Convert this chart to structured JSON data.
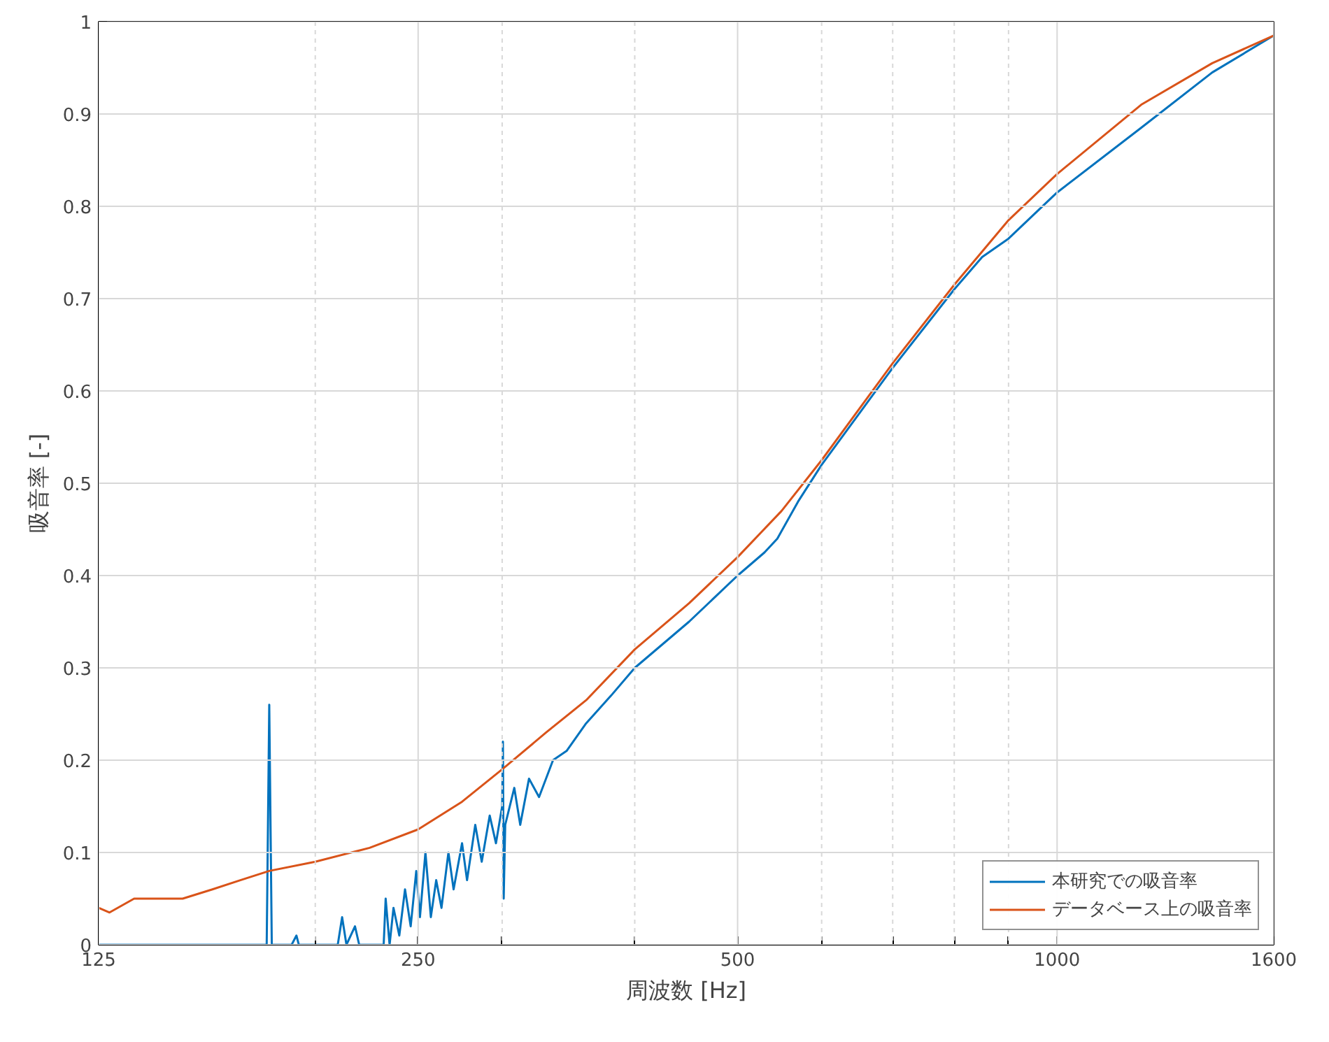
{
  "chart_data": {
    "type": "line",
    "xlabel": "周波数 [Hz]",
    "ylabel": "吸音率 [-]",
    "log": "x",
    "grid": true,
    "legend": "bottom right",
    "xlim": [
      125,
      1600
    ],
    "ylim": [
      0,
      1
    ],
    "xticks": [
      125,
      {
        "value": 200,
        "label": null
      },
      250,
      {
        "value": 300,
        "label": null
      },
      {
        "value": 400,
        "label": null
      },
      500,
      {
        "value": 600,
        "label": null
      },
      {
        "value": 700,
        "label": null
      },
      {
        "value": 800,
        "label": null
      },
      {
        "value": 900,
        "label": null
      },
      1000,
      1600
    ],
    "yticks": [
      0,
      0.1,
      0.2,
      0.3,
      0.4,
      0.5,
      0.6,
      0.7,
      0.8,
      0.9,
      1
    ],
    "series": [
      {
        "name": "本研究での吸音率",
        "color": "#0072bd",
        "x": [
          125,
          180,
          181,
          182,
          190,
          192,
          193,
          210,
          212,
          214,
          218,
          220,
          232,
          233,
          235,
          237,
          240,
          243,
          246,
          249,
          251,
          254,
          257,
          260,
          263,
          267,
          270,
          275,
          278,
          283,
          287,
          292,
          296,
          300,
          300.5,
          301,
          302,
          308,
          312,
          318,
          325,
          335,
          345,
          360,
          380,
          400,
          450,
          500,
          530,
          545,
          570,
          600,
          700,
          800,
          850,
          900,
          1000,
          1200,
          1400,
          1600
        ],
        "values": [
          0,
          0,
          0.26,
          0,
          0,
          0.01,
          0,
          0,
          0.03,
          0,
          0.02,
          0,
          0,
          0.05,
          0,
          0.04,
          0.01,
          0.06,
          0.02,
          0.08,
          0.03,
          0.1,
          0.03,
          0.07,
          0.04,
          0.1,
          0.06,
          0.11,
          0.07,
          0.13,
          0.09,
          0.14,
          0.11,
          0.15,
          0.22,
          0.05,
          0.13,
          0.17,
          0.13,
          0.18,
          0.16,
          0.2,
          0.21,
          0.24,
          0.27,
          0.3,
          0.35,
          0.4,
          0.425,
          0.44,
          0.48,
          0.52,
          0.625,
          0.71,
          0.745,
          0.765,
          0.815,
          0.885,
          0.945,
          0.985
        ]
      },
      {
        "name": "データベース上の吸音率",
        "color": "#d95319",
        "x": [
          125,
          128,
          135,
          140,
          150,
          160,
          170,
          181,
          200,
          225,
          250,
          275,
          300,
          330,
          360,
          400,
          450,
          500,
          550,
          600,
          700,
          800,
          900,
          1000,
          1200,
          1400,
          1600
        ],
        "values": [
          0.04,
          0.035,
          0.05,
          0.05,
          0.05,
          0.06,
          0.07,
          0.08,
          0.09,
          0.105,
          0.125,
          0.155,
          0.19,
          0.23,
          0.265,
          0.32,
          0.37,
          0.42,
          0.47,
          0.525,
          0.63,
          0.715,
          0.785,
          0.835,
          0.91,
          0.955,
          0.985
        ]
      }
    ]
  }
}
